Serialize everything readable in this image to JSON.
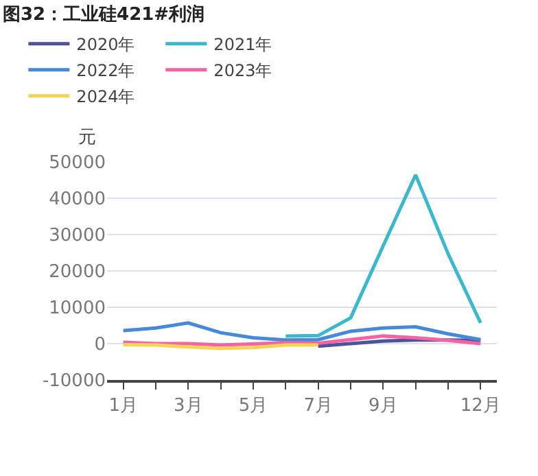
{
  "chart_data": {
    "type": "line",
    "title": "图32：工业硅421#利润",
    "ylabel": "元",
    "categories": [
      "1月",
      null,
      "3月",
      null,
      "5月",
      null,
      "7月",
      null,
      "9月",
      null,
      null,
      "12月"
    ],
    "series": [
      {
        "name": "2020年",
        "color": "#4b5499",
        "values": [
          null,
          null,
          null,
          null,
          null,
          null,
          -700,
          0,
          700,
          1000,
          1000,
          900
        ]
      },
      {
        "name": "2021年",
        "color": "#3bb8cc",
        "values": [
          null,
          null,
          null,
          null,
          null,
          2100,
          2200,
          7100,
          26900,
          46400,
          24700,
          5700
        ]
      },
      {
        "name": "2022年",
        "color": "#4689d6",
        "values": [
          3600,
          4300,
          5700,
          3000,
          1600,
          1000,
          1100,
          3400,
          4300,
          4600,
          2700,
          1100
        ]
      },
      {
        "name": "2023年",
        "color": "#f464a4",
        "values": [
          400,
          0,
          0,
          -400,
          -100,
          300,
          100,
          1100,
          2100,
          1600,
          900,
          0
        ]
      },
      {
        "name": "2024年",
        "color": "#f2d552",
        "values": [
          -300,
          -400,
          -900,
          -1300,
          -1100,
          -400,
          -400,
          null,
          null,
          null,
          null,
          null
        ]
      }
    ],
    "ylim": [
      -10000,
      50000
    ],
    "yticks": [
      -10000,
      0,
      10000,
      20000,
      30000,
      40000,
      50000
    ],
    "grid": "y",
    "legend": "top",
    "marker": "none",
    "line_style": "solid"
  }
}
